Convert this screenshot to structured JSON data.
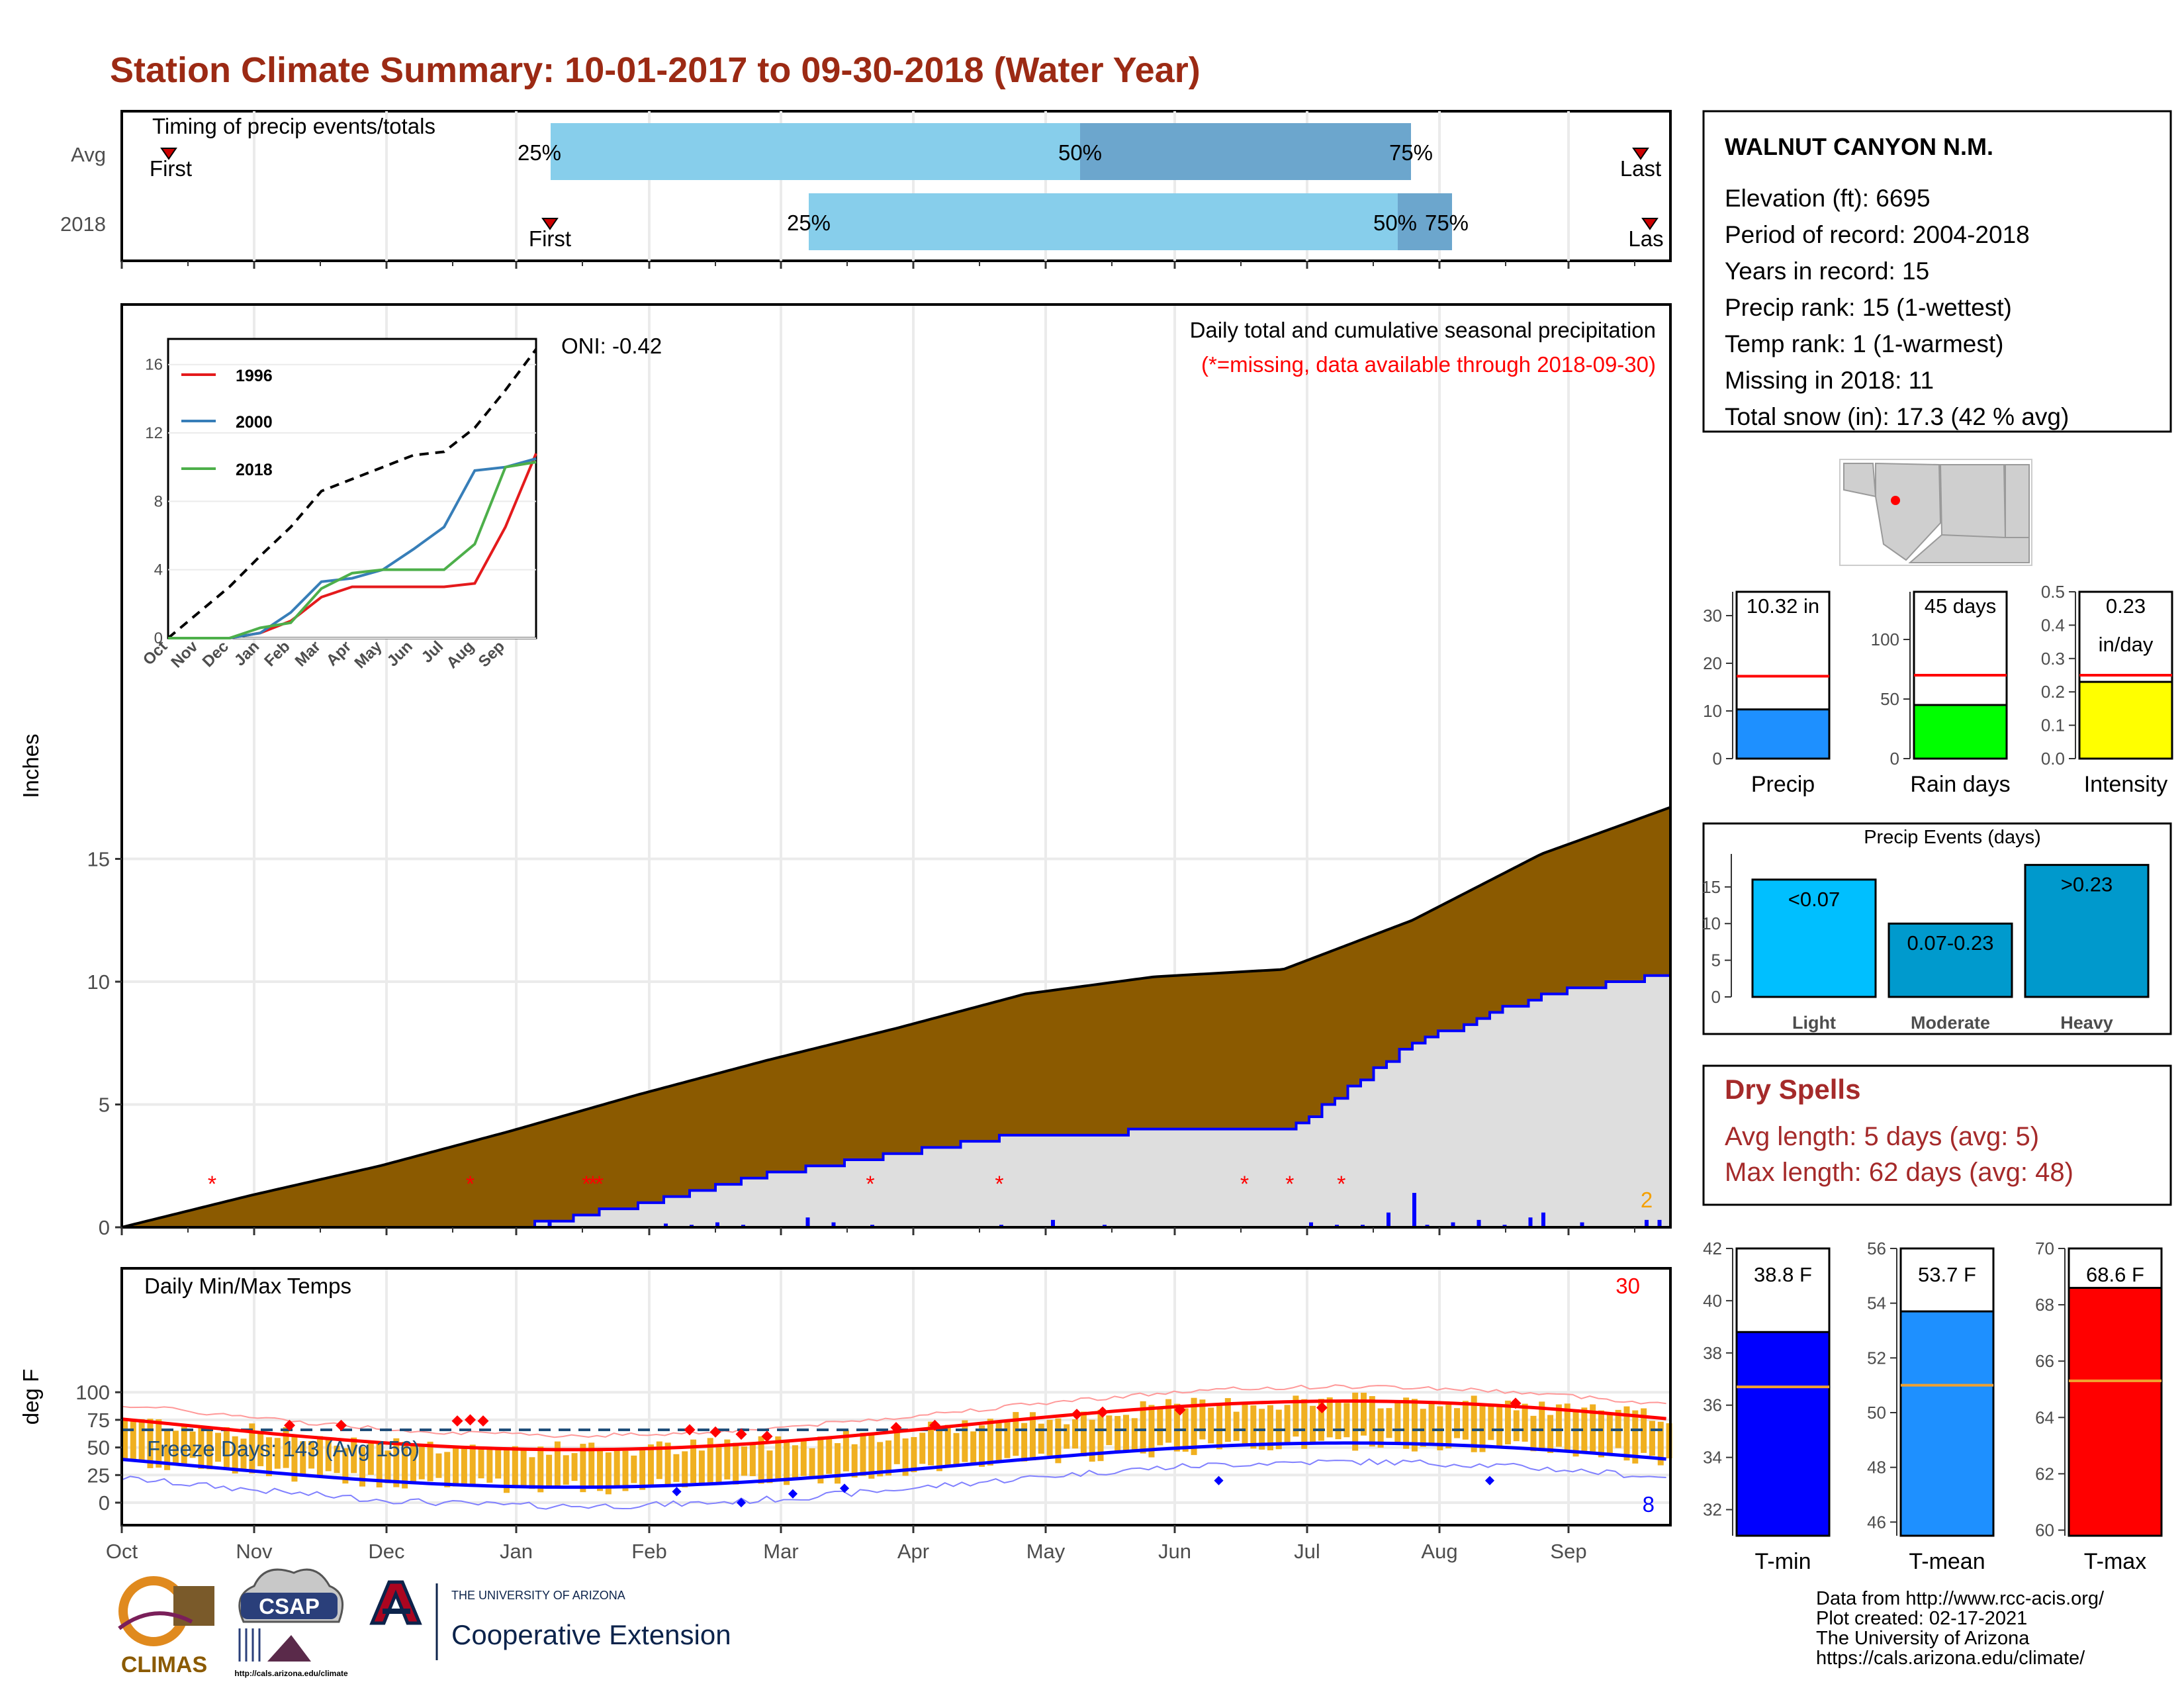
{
  "title": "Station Climate Summary: 10-01-2017 to 09-30-2018 (Water Year)",
  "colors": {
    "title": "#9c2a14",
    "cumulative_fill": "#8b5a00",
    "avg_series": "#0000ff",
    "temp_range": "#f0b020",
    "tmax_line": "#ff0000",
    "tmin_line": "#0000ff",
    "light_blue": "#87ceeb",
    "mid_blue": "#6ca6cd",
    "missing": "#ff0000",
    "dry_spells": "#a52a2a"
  },
  "timing": {
    "label": "Timing of precip events/totals",
    "rows": [
      {
        "name": "Avg",
        "first": "First",
        "last": "Last",
        "p25": "25%",
        "p50": "50%",
        "p75": "75%"
      },
      {
        "name": "2018",
        "first": "First",
        "last": "Las",
        "p25": "25%",
        "p50": "50%",
        "p75": "75%"
      }
    ]
  },
  "precip_panel": {
    "ylabel": "Inches",
    "oni": "ONI: -0.42",
    "caption": "Daily total and cumulative seasonal precipitation",
    "missing_note": "(*=missing, data available through 2018-09-30)",
    "count_label": "2",
    "yticks": [
      "0",
      "5",
      "10",
      "15"
    ]
  },
  "inset": {
    "yticks": [
      "0",
      "4",
      "8",
      "12",
      "16"
    ],
    "months": [
      "Oct",
      "Nov",
      "Dec",
      "Jan",
      "Feb",
      "Mar",
      "Apr",
      "May",
      "Jun",
      "Jul",
      "Aug",
      "Sep"
    ],
    "legend": [
      "1996",
      "2000",
      "2018"
    ]
  },
  "temp_panel": {
    "ylabel": "deg F",
    "label": "Daily Min/Max Temps",
    "freeze": "Freeze Days: 143 (Avg 156)",
    "hot_count": "30",
    "cold_count": "8",
    "yticks": [
      "0",
      "25",
      "50",
      "75",
      "100"
    ]
  },
  "months": [
    "Oct",
    "Nov",
    "Dec",
    "Jan",
    "Feb",
    "Mar",
    "Apr",
    "May",
    "Jun",
    "Jul",
    "Aug",
    "Sep"
  ],
  "station": {
    "name": "WALNUT CANYON N.M.",
    "lines": [
      "Elevation (ft): 6695",
      "Period of record: 2004-2018",
      "Years in record: 15",
      "Precip rank: 15 (1-wettest)",
      "Temp rank: 1 (1-warmest)",
      "Missing in 2018: 11",
      "Total snow (in): 17.3 (42 % avg)"
    ]
  },
  "mini_bars": [
    {
      "label": "Precip",
      "value_text": "10.32 in",
      "value": 10.32,
      "avg": 17.3,
      "ymax": 35,
      "ticks": [
        "0",
        "10",
        "20",
        "30"
      ],
      "color": "#1e90ff"
    },
    {
      "label": "Rain days",
      "value_text": "45 days",
      "value": 45,
      "avg": 70,
      "ymax": 140,
      "ticks": [
        "0",
        "50",
        "100"
      ],
      "color": "#00ff00"
    },
    {
      "label": "Intensity",
      "value_text": "0.23",
      "value_text2": "in/day",
      "value": 0.23,
      "avg": 0.25,
      "ymax": 0.5,
      "ticks": [
        "0.0",
        "0.1",
        "0.2",
        "0.3",
        "0.4",
        "0.5"
      ],
      "color": "#ffff00"
    }
  ],
  "precip_events": {
    "title": "Precip Events (days)",
    "ticks": [
      "0",
      "5",
      "10",
      "15"
    ],
    "bars": [
      {
        "label": "Light",
        "inner": "<0.07",
        "value": 16,
        "color": "#00bfff"
      },
      {
        "label": "Moderate",
        "inner": "0.07-0.23",
        "value": 10,
        "color": "#009acd"
      },
      {
        "label": "Heavy",
        "inner": ">0.23",
        "value": 18,
        "color": "#0099cc"
      }
    ]
  },
  "dry_spells": {
    "title": "Dry Spells",
    "avg": "Avg length: 5 days (avg: 5)",
    "max": "Max length: 62 days (avg: 48)"
  },
  "temp_bars": [
    {
      "label": "T-min",
      "value_text": "38.8 F",
      "value": 38.8,
      "avg": 36.7,
      "ymin": 31,
      "ymax": 42,
      "ticks": [
        "32",
        "34",
        "36",
        "38",
        "40",
        "42"
      ],
      "color": "#0000ff"
    },
    {
      "label": "T-mean",
      "value_text": "53.7 F",
      "value": 53.7,
      "avg": 51,
      "ymin": 45.5,
      "ymax": 56,
      "ticks": [
        "46",
        "48",
        "50",
        "52",
        "54",
        "56"
      ],
      "color": "#1e90ff"
    },
    {
      "label": "T-max",
      "value_text": "68.6 F",
      "value": 68.6,
      "avg": 65.3,
      "ymin": 59.8,
      "ymax": 70,
      "ticks": [
        "60",
        "62",
        "64",
        "66",
        "68",
        "70"
      ],
      "color": "#ff0000"
    }
  ],
  "footer": {
    "lines": [
      "Data from http://www.rcc-acis.org/",
      "Plot created: 02-17-2021",
      "The University of Arizona",
      "https://cals.arizona.edu/climate/"
    ],
    "logo_climas": "CLIMAS",
    "logo_csap": "CSAP",
    "logo_csap_url": "http://cals.arizona.edu/climate",
    "ua_small": "THE UNIVERSITY OF ARIZONA",
    "ua_big": "Cooperative Extension"
  },
  "chart_data": [
    {
      "type": "area",
      "title": "Daily total and cumulative seasonal precipitation",
      "ylabel": "Inches",
      "ylim": [
        0,
        18.5
      ],
      "x": [
        "Oct",
        "Nov",
        "Dec",
        "Jan",
        "Feb",
        "Mar",
        "Apr",
        "May",
        "Jun",
        "Jul",
        "Aug",
        "Sep",
        "Sep-30"
      ],
      "series": [
        {
          "values": [
            0,
            1.3,
            2.5,
            3.9,
            5.4,
            6.8,
            8.1,
            9.5,
            10.2,
            10.5,
            12.5,
            15.2,
            17.1
          ]
        },
        {
          "values": [
            0,
            0,
            0,
            0,
            0.9,
            2.2,
            3.0,
            3.8,
            3.9,
            3.9,
            7.5,
            9.5,
            10.3
          ]
        }
      ]
    },
    {
      "type": "bar",
      "title": "Precip Events (days)",
      "categories": [
        "Light",
        "Moderate",
        "Heavy"
      ],
      "values": [
        16,
        10,
        18
      ]
    }
  ]
}
